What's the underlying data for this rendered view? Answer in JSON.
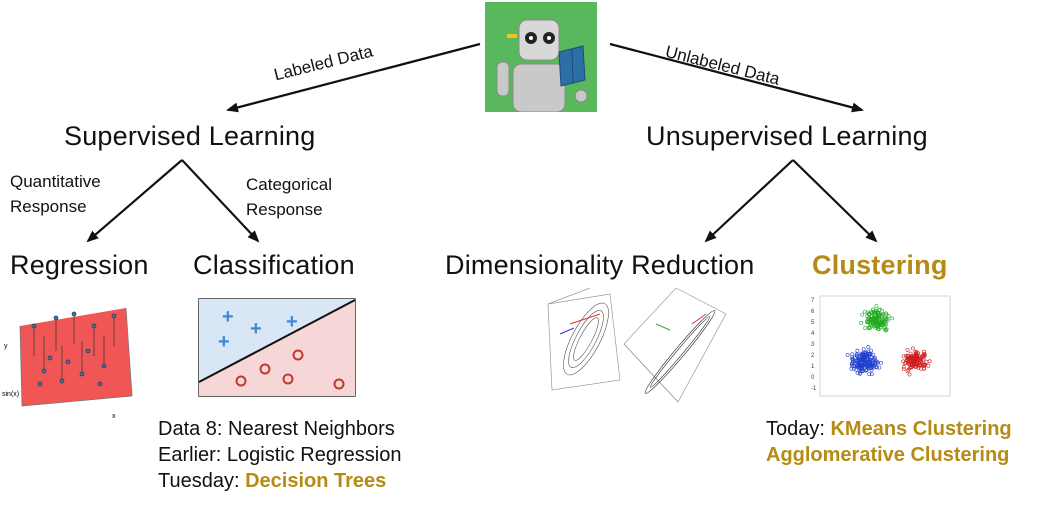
{
  "root": {
    "icon": "robot-reading-book-icon"
  },
  "edges": {
    "labeled": "Labeled Data",
    "unlabeled": "Unlabeled Data",
    "quantitative": [
      "Quantitative",
      "Response"
    ],
    "categorical": [
      "Categorical",
      "Response"
    ]
  },
  "nodes": {
    "supervised": "Supervised Learning",
    "unsupervised": "Unsupervised Learning",
    "regression": "Regression",
    "classification": "Classification",
    "dimensionality": "Dimensionality Reduction",
    "clustering": "Clustering"
  },
  "colors": {
    "highlight": "#b58b16",
    "robot_bg": "#5ab85c"
  },
  "classification_notes": {
    "line1": "Data 8: Nearest Neighbors",
    "line2": "Earlier: Logistic Regression",
    "line3_prefix": "Tuesday: ",
    "line3_highlight": "Decision Trees"
  },
  "clustering_notes": {
    "line1_prefix": "Today: ",
    "line1_highlight": "KMeans Clustering",
    "line2_highlight": "Agglomerative Clustering"
  },
  "thumbnails": {
    "regression_axes": {
      "y": "y",
      "x": "x",
      "z": "sin(x)"
    },
    "classification_plus": "+",
    "clustering_ticks_y": [
      "7",
      "6",
      "5",
      "4",
      "3",
      "2",
      "1",
      "0",
      "-1"
    ]
  }
}
